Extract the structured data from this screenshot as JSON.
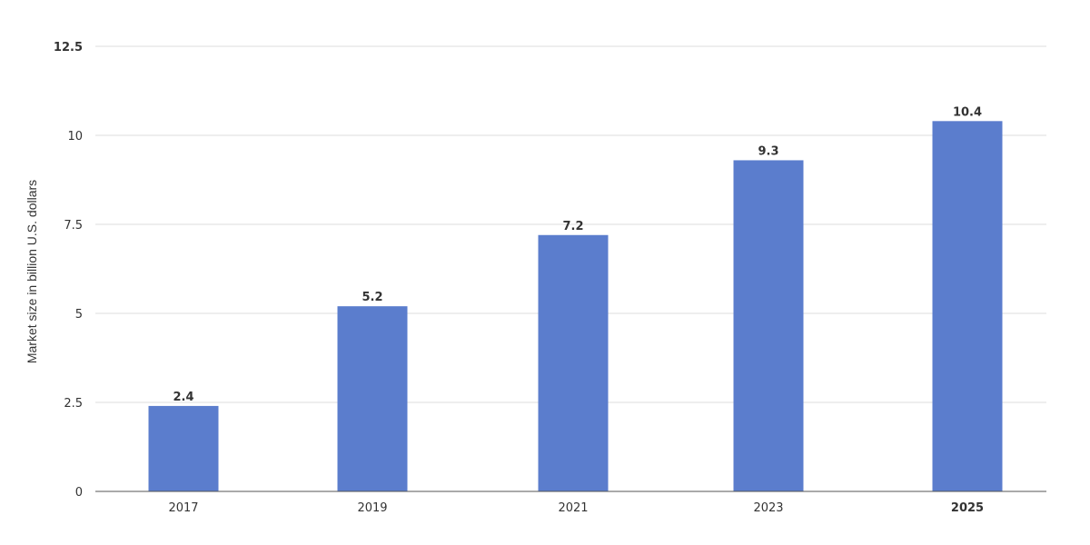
{
  "chart_data": {
    "type": "bar",
    "categories": [
      "2017",
      "2019",
      "2021",
      "2023",
      "2025"
    ],
    "values": [
      2.4,
      5.2,
      7.2,
      9.3,
      10.4
    ],
    "data_labels": [
      "2.4",
      "5.2",
      "7.2",
      "9.3",
      "10.4"
    ],
    "title": "",
    "xlabel": "",
    "ylabel": "Market size in billion U.S. dollars",
    "ylim": [
      0,
      12.5
    ],
    "yticks": [
      0,
      2.5,
      5,
      7.5,
      10,
      12.5
    ],
    "ytick_labels": [
      "0",
      "2.5",
      "5",
      "7.5",
      "10",
      "12.5"
    ],
    "grid": true,
    "legend": "none",
    "bar_color": "#5b7dcd"
  }
}
